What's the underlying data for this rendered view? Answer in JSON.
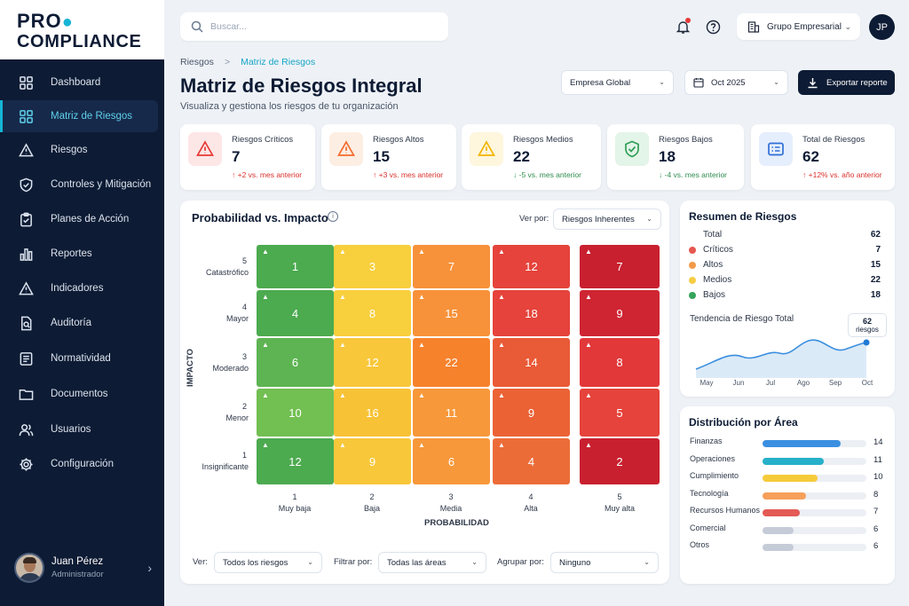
{
  "brand": {
    "logo_line1_a": "PRO",
    "logo_line1_b": "",
    "logo_line2": "COMPLIANCE"
  },
  "sidebar": {
    "items": [
      {
        "label": "Dashboard",
        "icon": "grid-icon"
      },
      {
        "label": "Matriz de Riesgos",
        "icon": "matrix-icon",
        "active": true
      },
      {
        "label": "Riesgos",
        "icon": "warning-icon"
      },
      {
        "label": "Controles y Mitigación",
        "icon": "shield-icon"
      },
      {
        "label": "Planes de Acción",
        "icon": "clipboard-icon"
      },
      {
        "label": "Reportes",
        "icon": "bar-chart-icon"
      },
      {
        "label": "Indicadores",
        "icon": "alert-icon"
      },
      {
        "label": "Auditoría",
        "icon": "audit-icon"
      },
      {
        "label": "Normatividad",
        "icon": "list-icon"
      },
      {
        "label": "Documentos",
        "icon": "folder-icon"
      },
      {
        "label": "Usuarios",
        "icon": "users-icon"
      },
      {
        "label": "Configuración",
        "icon": "gear-icon"
      }
    ]
  },
  "user": {
    "name": "Juan Pérez",
    "role": "Administrador",
    "initials": "JP"
  },
  "topbar": {
    "search_placeholder": "Buscar...",
    "company": "Grupo Empresarial"
  },
  "breadcrumb": {
    "root": "Riesgos",
    "sep": ">",
    "current": "Matriz de Riesgos"
  },
  "page": {
    "title": "Matriz de Riesgos Integral",
    "subtitle": "Visualiza y gestiona los riesgos de tu organización"
  },
  "filters": {
    "entity": "Empresa Global",
    "period": "Oct 2025",
    "export": "Exportar reporte"
  },
  "kpis": [
    {
      "label": "Riesgos Críticos",
      "value": "7",
      "trend": "+2 vs. mes anterior",
      "dir": "up",
      "color": "#e53935",
      "bg": "#fde6e6"
    },
    {
      "label": "Riesgos Altos",
      "value": "15",
      "trend": "+3 vs. mes anterior",
      "dir": "up",
      "color": "#f26b2c",
      "bg": "#fdeee3"
    },
    {
      "label": "Riesgos Medios",
      "value": "22",
      "trend": "-5 vs. mes anterior",
      "dir": "down",
      "color": "#f2b400",
      "bg": "#fef6dd"
    },
    {
      "label": "Riesgos Bajos",
      "value": "18",
      "trend": "-4 vs. mes anterior",
      "dir": "down",
      "color": "#2e9e55",
      "bg": "#e3f4e8"
    },
    {
      "label": "Total de Riesgos",
      "value": "62",
      "trend": "+12% vs. año anterior",
      "dir": "up",
      "color": "#2f6fd6",
      "bg": "#e5eefc"
    }
  ],
  "matrix": {
    "title": "Probabilidad vs. Impacto",
    "view_label": "Ver por:",
    "view_value": "Riesgos Inherentes",
    "axis_x": "PROBABILIDAD",
    "axis_y": "IMPACTO",
    "impact_levels": [
      {
        "num": "5",
        "name": "Catastrófico"
      },
      {
        "num": "4",
        "name": "Mayor"
      },
      {
        "num": "3",
        "name": "Moderado"
      },
      {
        "num": "2",
        "name": "Menor"
      },
      {
        "num": "1",
        "name": "Insignificante"
      }
    ],
    "prob_levels": [
      {
        "num": "1",
        "name": "Muy baja"
      },
      {
        "num": "2",
        "name": "Baja"
      },
      {
        "num": "3",
        "name": "Media"
      },
      {
        "num": "4",
        "name": "Alta"
      },
      {
        "num": "5",
        "name": "Muy alta"
      }
    ],
    "rows": [
      [
        {
          "v": "1",
          "c": "#4caa4f"
        },
        {
          "v": "3",
          "c": "#f8cf3c"
        },
        {
          "v": "7",
          "c": "#f7923a"
        },
        {
          "v": "12",
          "c": "#e5433b"
        },
        {
          "v": "7",
          "c": "#c8202f"
        }
      ],
      [
        {
          "v": "4",
          "c": "#4caa4f"
        },
        {
          "v": "8",
          "c": "#f8cf3c"
        },
        {
          "v": "15",
          "c": "#f7923a"
        },
        {
          "v": "18",
          "c": "#e5433b"
        },
        {
          "v": "9",
          "c": "#cf2533"
        }
      ],
      [
        {
          "v": "6",
          "c": "#5eb452"
        },
        {
          "v": "12",
          "c": "#f8c73a"
        },
        {
          "v": "22",
          "c": "#f7822c"
        },
        {
          "v": "14",
          "c": "#e95a36"
        },
        {
          "v": "8",
          "c": "#e2383a"
        }
      ],
      [
        {
          "v": "10",
          "c": "#72bf52"
        },
        {
          "v": "16",
          "c": "#f8c236"
        },
        {
          "v": "11",
          "c": "#f7983a"
        },
        {
          "v": "9",
          "c": "#eb6235"
        },
        {
          "v": "5",
          "c": "#e5433b"
        }
      ],
      [
        {
          "v": "12",
          "c": "#4caa4f"
        },
        {
          "v": "9",
          "c": "#f8c73a"
        },
        {
          "v": "6",
          "c": "#f7983a"
        },
        {
          "v": "4",
          "c": "#ec6c38"
        },
        {
          "v": "2",
          "c": "#c8202f"
        }
      ]
    ],
    "footer": {
      "ver_label": "Ver:",
      "ver_value": "Todos los riesgos",
      "filtrar_label": "Filtrar por:",
      "filtrar_value": "Todas las áreas",
      "agrupar_label": "Agrupar por:",
      "agrupar_value": "Ninguno"
    }
  },
  "summary": {
    "title": "Resumen de Riesgos",
    "rows": [
      {
        "label": "Total",
        "value": "62",
        "color": ""
      },
      {
        "label": "Críticos",
        "value": "7",
        "color": "#e5574f"
      },
      {
        "label": "Altos",
        "value": "15",
        "color": "#f39a4a"
      },
      {
        "label": "Medios",
        "value": "22",
        "color": "#f6cd44"
      },
      {
        "label": "Bajos",
        "value": "18",
        "color": "#36a35a"
      }
    ],
    "trend_title": "Tendencia de Riesgo Total",
    "trend_tooltip_value": "62",
    "trend_tooltip_label": "riesgos",
    "months": [
      "May",
      "Jun",
      "Jul",
      "Ago",
      "Sep",
      "Oct"
    ]
  },
  "distribution": {
    "title": "Distribución por Área",
    "rows": [
      {
        "label": "Finanzas",
        "value": "14",
        "fill": 0.75,
        "color": "#3b8fe0"
      },
      {
        "label": "Operaciones",
        "value": "11",
        "fill": 0.59,
        "color": "#27b0c9"
      },
      {
        "label": "Cumplimiento",
        "value": "10",
        "fill": 0.53,
        "color": "#f6cb3a"
      },
      {
        "label": "Tecnología",
        "value": "8",
        "fill": 0.42,
        "color": "#f6a05a"
      },
      {
        "label": "Recursos Humanos",
        "value": "7",
        "fill": 0.36,
        "color": "#e45a55"
      },
      {
        "label": "Comercial",
        "value": "6",
        "fill": 0.3,
        "color": "#c5ccd8"
      },
      {
        "label": "Otros",
        "value": "6",
        "fill": 0.3,
        "color": "#c5ccd8"
      }
    ]
  }
}
